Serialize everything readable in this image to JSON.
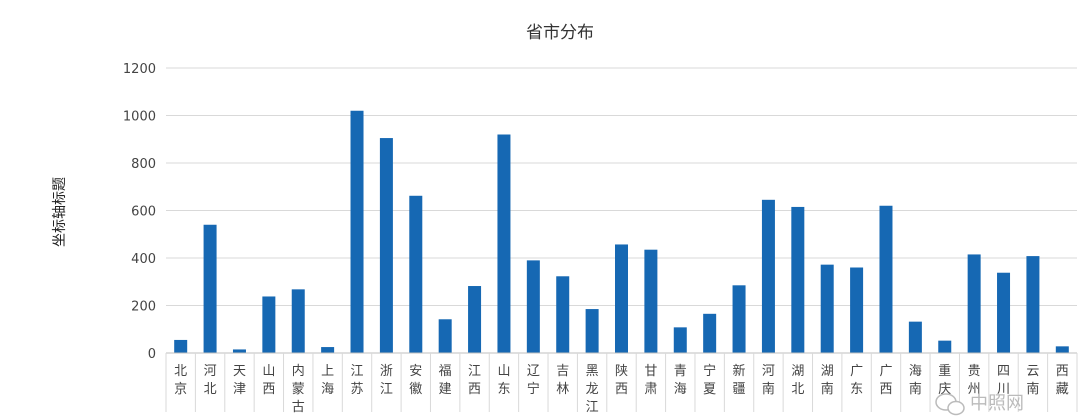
{
  "chart_data": {
    "type": "bar",
    "title": "省市分布",
    "xlabel": "",
    "ylabel": "坐标轴标题",
    "ylim": [
      0,
      1200
    ],
    "yticks": [
      0,
      200,
      400,
      600,
      800,
      1000,
      1200
    ],
    "grid": true,
    "bar_color": "#1668b3",
    "categories": [
      "北京",
      "河北",
      "天津",
      "山西",
      "内蒙古",
      "上海",
      "江苏",
      "浙江",
      "安徽",
      "福建",
      "江西",
      "山东",
      "辽宁",
      "吉林",
      "黑龙江",
      "陕西",
      "甘肃",
      "青海",
      "宁夏",
      "新疆",
      "河南",
      "湖北",
      "湖南",
      "广东",
      "广西",
      "海南",
      "重庆",
      "贵州",
      "四川",
      "云南",
      "西藏"
    ],
    "values": [
      55,
      540,
      15,
      238,
      268,
      25,
      1020,
      905,
      662,
      142,
      282,
      920,
      390,
      323,
      185,
      457,
      435,
      108,
      165,
      285,
      645,
      615,
      372,
      360,
      620,
      132,
      52,
      415,
      338,
      408,
      28
    ]
  },
  "watermark": {
    "icon": "wechat-icon",
    "text": "中照网"
  }
}
